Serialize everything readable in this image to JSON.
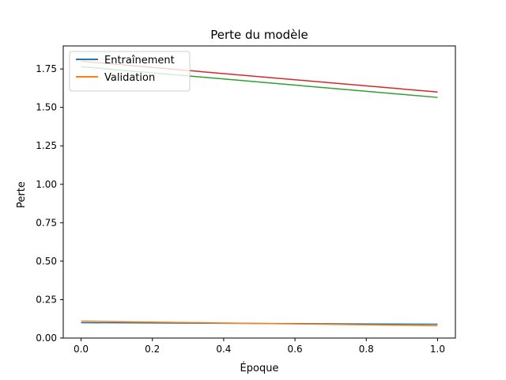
{
  "chart_data": {
    "type": "line",
    "title": "Perte du modèle",
    "xlabel": "Époque",
    "ylabel": "Perte",
    "x": [
      0.0,
      1.0
    ],
    "xlim": [
      -0.05,
      1.05
    ],
    "ylim": [
      0.0,
      1.9
    ],
    "xticks": [
      0.0,
      0.2,
      0.4,
      0.6,
      0.8,
      1.0
    ],
    "xtick_labels": [
      "0.0",
      "0.2",
      "0.4",
      "0.6",
      "0.8",
      "1.0"
    ],
    "yticks": [
      0.0,
      0.25,
      0.5,
      0.75,
      1.0,
      1.25,
      1.5,
      1.75
    ],
    "ytick_labels": [
      "0.00",
      "0.25",
      "0.50",
      "0.75",
      "1.00",
      "1.25",
      "1.50",
      "1.75"
    ],
    "grid": false,
    "legend_position": "top-left",
    "series": [
      {
        "name": "Entraînement",
        "color": "#1f77b4",
        "values": [
          0.1,
          0.09
        ],
        "in_legend": true
      },
      {
        "name": "Validation",
        "color": "#ff7f0e",
        "values": [
          0.11,
          0.08
        ],
        "in_legend": true
      },
      {
        "color": "#2ca02c",
        "values": [
          1.765,
          1.565
        ],
        "in_legend": false
      },
      {
        "color": "#d62728",
        "values": [
          1.8,
          1.6
        ],
        "in_legend": false
      }
    ]
  }
}
